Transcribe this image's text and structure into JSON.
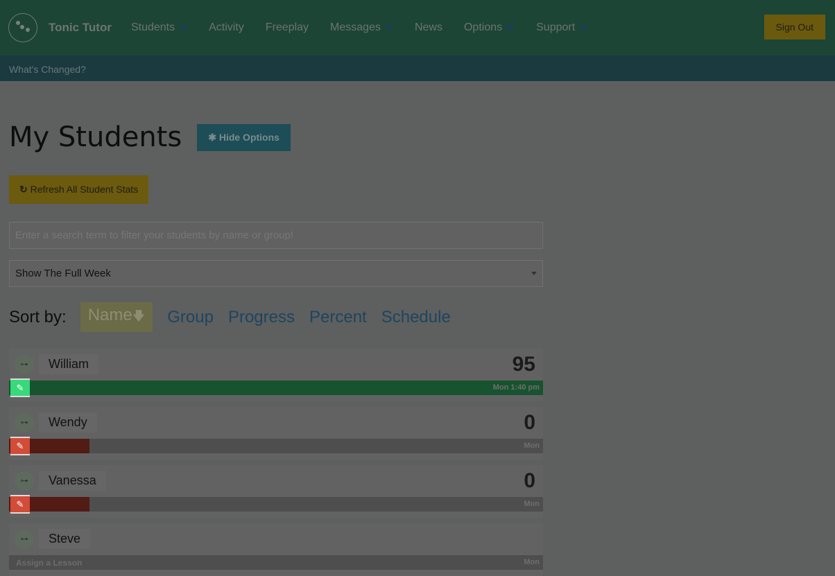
{
  "nav": {
    "brand": "Tonic Tutor",
    "items": [
      {
        "label": "Students",
        "dropdown": true
      },
      {
        "label": "Activity",
        "dropdown": false
      },
      {
        "label": "Freeplay",
        "dropdown": false
      },
      {
        "label": "Messages",
        "dropdown": true
      },
      {
        "label": "News",
        "dropdown": false
      },
      {
        "label": "Options",
        "dropdown": true
      },
      {
        "label": "Support",
        "dropdown": true
      }
    ],
    "sign_out": "Sign Out"
  },
  "subbar": {
    "link": "What's Changed?"
  },
  "page": {
    "title": "My Students",
    "hide_options": "Hide Options",
    "refresh": "Refresh All Student Stats",
    "search_placeholder": "Enter a search term to filter your students by name or group!",
    "week_select": "Show The Full Week"
  },
  "sort": {
    "label": "Sort by:",
    "options": [
      "Name",
      "Group",
      "Progress",
      "Percent",
      "Schedule"
    ],
    "active": "Name"
  },
  "students": [
    {
      "name": "William",
      "score": "95",
      "progress": 1.0,
      "bar_color": "#17532f",
      "icon_color": "#38d97a",
      "right": "Mon 1:40 pm"
    },
    {
      "name": "Wendy",
      "score": "0",
      "progress": 0.15,
      "bar_color": "#521b14",
      "icon_color": "#d24c38",
      "right": "Mon"
    },
    {
      "name": "Vanessa",
      "score": "0",
      "progress": 0.15,
      "bar_color": "#521b14",
      "icon_color": "#d24c38",
      "right": "Mon"
    },
    {
      "name": "Steve",
      "score": "",
      "assign": "Assign a Lesson",
      "right": "Mon"
    }
  ]
}
